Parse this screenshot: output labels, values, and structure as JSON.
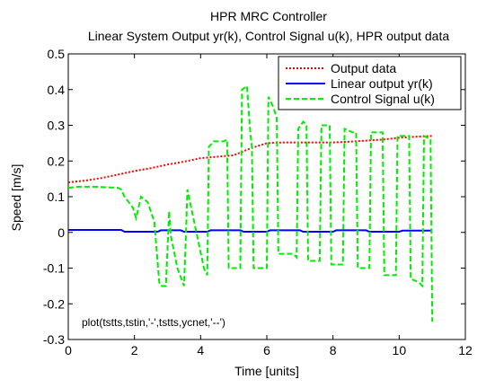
{
  "chart_data": {
    "type": "line",
    "title": "HPR MRC Controller",
    "subtitle": "Linear System Output yr(k), Control Signal u(k), HPR output data",
    "xlabel": "Time [units]",
    "ylabel": "Speed [m/s]",
    "xlim": [
      0,
      12
    ],
    "ylim": [
      -0.3,
      0.5
    ],
    "xticks": [
      "0",
      "2",
      "4",
      "6",
      "8",
      "10",
      "12"
    ],
    "yticks": [
      "-0.3",
      "-0.2",
      "-0.1",
      "0",
      "0.1",
      "0.2",
      "0.3",
      "0.4",
      "0.5"
    ],
    "grid": false,
    "legend_position": "top-right",
    "annotation": "plot(tstts,tstin,'-',tstts,ycnet,'--')",
    "series": [
      {
        "name": "Output data",
        "color": "#ff0000",
        "style": "dotted",
        "x": [
          0,
          0.5,
          1.0,
          1.5,
          2.0,
          2.5,
          3.0,
          3.5,
          4.0,
          4.5,
          5.0,
          5.5,
          6.0,
          6.5,
          7.0,
          7.5,
          8.0,
          8.5,
          9.0,
          9.5,
          10.0,
          10.5,
          11.0
        ],
        "y": [
          0.14,
          0.145,
          0.152,
          0.162,
          0.172,
          0.18,
          0.19,
          0.198,
          0.208,
          0.212,
          0.216,
          0.235,
          0.25,
          0.252,
          0.252,
          0.252,
          0.252,
          0.254,
          0.257,
          0.26,
          0.265,
          0.268,
          0.27
        ]
      },
      {
        "name": "Linear output yr(k)",
        "color": "#0000ff",
        "style": "solid",
        "x": [
          0,
          1.6,
          1.7,
          2.7,
          2.8,
          3.4,
          3.5,
          4.2,
          4.3,
          5.2,
          5.3,
          6.0,
          6.1,
          7.0,
          7.1,
          8.0,
          8.1,
          9.0,
          9.1,
          10.0,
          10.1,
          11.0
        ],
        "y": [
          0.007,
          0.007,
          0.002,
          0.002,
          0.006,
          0.006,
          0.002,
          0.002,
          0.006,
          0.006,
          0.002,
          0.002,
          0.006,
          0.006,
          0.002,
          0.002,
          0.006,
          0.006,
          0.002,
          0.002,
          0.005,
          0.005
        ]
      },
      {
        "name": "Control Signal u(k)",
        "color": "#00ee00",
        "style": "dashed",
        "x": [
          0,
          0.3,
          0.8,
          1.5,
          1.6,
          1.7,
          1.95,
          2.05,
          2.1,
          2.2,
          2.4,
          2.6,
          2.75,
          2.8,
          2.95,
          3.05,
          3.1,
          3.3,
          3.5,
          3.55,
          3.6,
          4.1,
          4.2,
          4.25,
          4.4,
          4.7,
          4.8,
          4.85,
          5.0,
          5.1,
          5.2,
          5.25,
          5.4,
          5.5,
          5.55,
          5.6,
          6.0,
          6.05,
          6.2,
          6.3,
          6.35,
          6.5,
          6.8,
          6.9,
          6.95,
          7.1,
          7.2,
          7.25,
          7.5,
          7.6,
          7.65,
          7.8,
          7.9,
          7.95,
          8.2,
          8.3,
          8.35,
          8.6,
          8.7,
          8.75,
          9.0,
          9.1,
          9.15,
          9.4,
          9.5,
          9.55,
          9.8,
          9.9,
          9.95,
          10.2,
          10.3,
          10.35,
          10.6,
          10.7,
          10.75,
          10.95,
          11.0
        ],
        "y": [
          0.125,
          0.128,
          0.128,
          0.125,
          0.12,
          0.1,
          0.07,
          0.04,
          0.06,
          0.1,
          0.085,
          0.03,
          -0.14,
          -0.15,
          -0.15,
          0.06,
          -0.01,
          -0.1,
          -0.15,
          -0.02,
          0.12,
          -0.1,
          -0.12,
          0.24,
          0.255,
          0.255,
          0.26,
          -0.1,
          -0.1,
          -0.1,
          -0.1,
          0.4,
          0.41,
          0.28,
          0.24,
          -0.1,
          -0.1,
          0.38,
          0.35,
          0.32,
          -0.06,
          -0.06,
          -0.06,
          -0.07,
          0.29,
          0.31,
          0.3,
          -0.08,
          -0.08,
          -0.08,
          0.3,
          0.3,
          0.3,
          -0.09,
          -0.09,
          -0.09,
          0.29,
          0.28,
          0.28,
          -0.1,
          -0.1,
          -0.1,
          0.28,
          0.28,
          0.28,
          -0.12,
          -0.12,
          -0.12,
          0.27,
          0.27,
          0.27,
          -0.13,
          -0.14,
          -0.15,
          0.27,
          0.26,
          -0.25
        ]
      }
    ]
  }
}
